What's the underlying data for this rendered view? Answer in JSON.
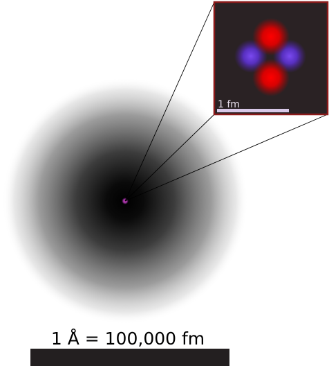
{
  "inset": {
    "scale_label": "1 fm"
  },
  "main": {
    "scale_label": "1 Å = 100,000 fm"
  },
  "colors": {
    "electron_cloud": "#000000",
    "inset_background": "#2a2224",
    "inset_border": "#8b1a1a",
    "proton": "#ff0000",
    "neutron": "#6a3adf",
    "scale_bar": "#231f20",
    "inset_scale_bar": "#d8c8e8"
  }
}
